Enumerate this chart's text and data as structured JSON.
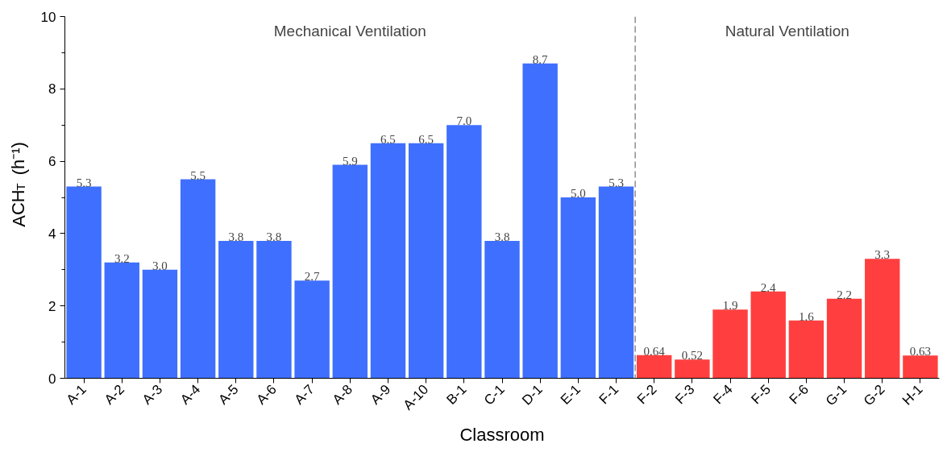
{
  "chart_data": {
    "type": "bar",
    "xlabel": "Classroom",
    "ylabel": "ACH$_{T}$ (h⁻¹)",
    "categories": [
      "A-1",
      "A-2",
      "A-3",
      "A-4",
      "A-5",
      "A-6",
      "A-7",
      "A-8",
      "A-9",
      "A-10",
      "B-1",
      "C-1",
      "D-1",
      "E-1",
      "F-1",
      "F-2",
      "F-3",
      "F-4",
      "F-5",
      "F-6",
      "G-1",
      "G-2",
      "H-1"
    ],
    "values": [
      5.3,
      3.2,
      3.0,
      5.5,
      3.8,
      3.8,
      2.7,
      5.9,
      6.5,
      6.5,
      7.0,
      3.8,
      8.7,
      5.0,
      5.3,
      0.64,
      0.52,
      1.9,
      2.4,
      1.6,
      2.2,
      3.3,
      0.63
    ],
    "value_labels": [
      "5.3",
      "3.2",
      "3.0",
      "5.5",
      "3.8",
      "3.8",
      "2.7",
      "5.9",
      "6.5",
      "6.5",
      "7.0",
      "3.8",
      "8.7",
      "5.0",
      "5.3",
      "0.64",
      "0.52",
      "1.9",
      "2.4",
      "1.6",
      "2.2",
      "3.3",
      "0.63"
    ],
    "colors": [
      "#3f6fff",
      "#3f6fff",
      "#3f6fff",
      "#3f6fff",
      "#3f6fff",
      "#3f6fff",
      "#3f6fff",
      "#3f6fff",
      "#3f6fff",
      "#3f6fff",
      "#3f6fff",
      "#3f6fff",
      "#3f6fff",
      "#3f6fff",
      "#3f6fff",
      "#ff3f3f",
      "#ff3f3f",
      "#ff3f3f",
      "#ff3f3f",
      "#ff3f3f",
      "#ff3f3f",
      "#ff3f3f",
      "#ff3f3f"
    ],
    "ylim": [
      0,
      10
    ],
    "yticks": [
      0,
      2,
      4,
      6,
      8,
      10
    ],
    "grid": false,
    "annotations": [
      "Mechanical Ventilation",
      "Natural Ventilation"
    ]
  }
}
